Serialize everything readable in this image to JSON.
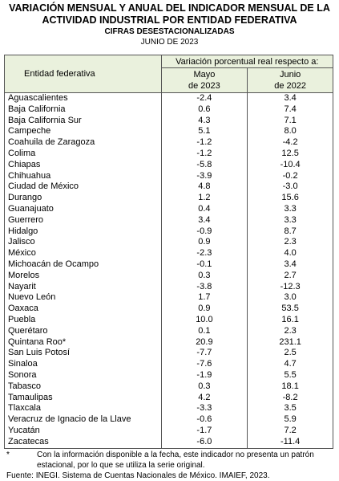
{
  "header": {
    "title_line1": "VARIACIÓN MENSUAL Y ANUAL DEL INDICADOR MENSUAL DE LA",
    "title_line2": "ACTIVIDAD INDUSTRIAL POR ENTIDAD FEDERATIVA",
    "subtitle": "CIFRAS DESESTACIONALIZADAS",
    "period": "JUNIO DE 2023"
  },
  "table": {
    "col_entity": "Entidad federativa",
    "col_group": "Variación porcentual real respecto a:",
    "col_a": [
      "Mayo",
      "de 2023"
    ],
    "col_b": [
      "Junio",
      "de 2022"
    ],
    "rows": [
      [
        "Aguascalientes",
        "-2.4",
        "3.4"
      ],
      [
        "Baja California",
        "0.6",
        "7.4"
      ],
      [
        "Baja California Sur",
        "4.3",
        "7.1"
      ],
      [
        "Campeche",
        "5.1",
        "8.0"
      ],
      [
        "Coahuila de Zaragoza",
        "-1.2",
        "-4.2"
      ],
      [
        "Colima",
        "-1.2",
        "12.5"
      ],
      [
        "Chiapas",
        "-5.8",
        "-10.4"
      ],
      [
        "Chihuahua",
        "-3.9",
        "-0.2"
      ],
      [
        "Ciudad de México",
        "4.8",
        "-3.0"
      ],
      [
        "Durango",
        "1.2",
        "15.6"
      ],
      [
        "Guanajuato",
        "0.4",
        "3.3"
      ],
      [
        "Guerrero",
        "3.4",
        "3.3"
      ],
      [
        "Hidalgo",
        "-0.9",
        "8.7"
      ],
      [
        "Jalisco",
        "0.9",
        "2.3"
      ],
      [
        "México",
        "-2.3",
        "4.0"
      ],
      [
        "Michoacán de Ocampo",
        "-0.1",
        "3.4"
      ],
      [
        "Morelos",
        "0.3",
        "2.7"
      ],
      [
        "Nayarit",
        "-3.8",
        "-12.3"
      ],
      [
        "Nuevo León",
        "1.7",
        "3.0"
      ],
      [
        "Oaxaca",
        "0.9",
        "53.5"
      ],
      [
        "Puebla",
        "10.0",
        "16.1"
      ],
      [
        "Querétaro",
        "0.1",
        "2.3"
      ],
      [
        "Quintana Roo*",
        "20.9",
        "231.1"
      ],
      [
        "San Luis Potosí",
        "-7.7",
        "2.5"
      ],
      [
        "Sinaloa",
        "-7.6",
        "4.7"
      ],
      [
        "Sonora",
        "-1.9",
        "5.5"
      ],
      [
        "Tabasco",
        "0.3",
        "18.1"
      ],
      [
        "Tamaulipas",
        "4.2",
        "-8.2"
      ],
      [
        "Tlaxcala",
        "-3.3",
        "3.5"
      ],
      [
        "Veracruz de Ignacio de la Llave",
        "-0.6",
        "5.9"
      ],
      [
        "Yucatán",
        "-1.7",
        "7.2"
      ],
      [
        "Zacatecas",
        "-6.0",
        "-11.4"
      ]
    ]
  },
  "footnote": {
    "mark": "*",
    "text": "Con la información disponible a la fecha, este indicador no presenta un patrón estacional, por lo que se utiliza la serie original."
  },
  "source": "Fuente: INEGI. Sistema de Cuentas Nacionales de México. IMAIEF, 2023."
}
